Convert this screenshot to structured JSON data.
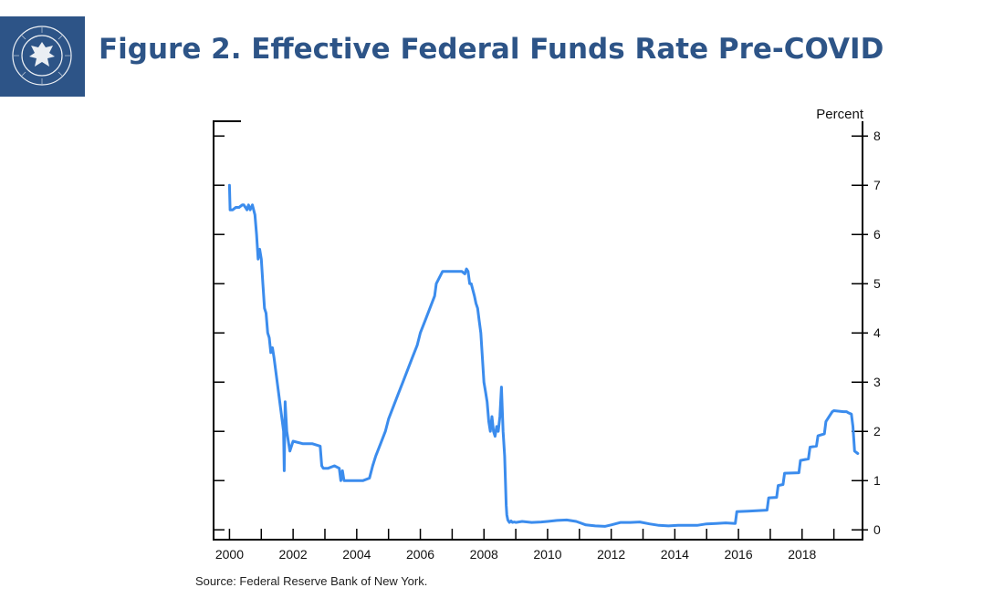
{
  "header": {
    "title": "Figure 2. Effective Federal Funds Rate Pre-COVID",
    "logo_icon": "federal-reserve-seal-icon",
    "logo_color": "#2d5487"
  },
  "source_note": "Source: Federal Reserve Bank of New York.",
  "chart_data": {
    "type": "line",
    "title": "",
    "xlabel": "",
    "ylabel": "Percent",
    "y_axis_side": "right",
    "xlim": [
      1999.5,
      2019.9
    ],
    "ylim": [
      -0.2,
      8.3
    ],
    "x_ticks": [
      2000,
      2002,
      2004,
      2006,
      2008,
      2010,
      2012,
      2014,
      2016,
      2018
    ],
    "y_ticks": [
      0,
      1,
      2,
      3,
      4,
      5,
      6,
      7,
      8
    ],
    "grid": false,
    "line_color": "#3b8ced",
    "series": [
      {
        "name": "",
        "x": [
          2000.0,
          2000.02,
          2000.1,
          2000.2,
          2000.3,
          2000.4,
          2000.45,
          2000.5,
          2000.55,
          2000.6,
          2000.65,
          2000.72,
          2000.8,
          2000.85,
          2000.9,
          2000.95,
          2001.0,
          2001.05,
          2001.1,
          2001.15,
          2001.2,
          2001.25,
          2001.3,
          2001.35,
          2001.4,
          2001.5,
          2001.6,
          2001.7,
          2001.72,
          2001.75,
          2001.8,
          2001.9,
          2002.0,
          2002.3,
          2002.6,
          2002.85,
          2002.9,
          2002.95,
          2003.1,
          2003.3,
          2003.45,
          2003.5,
          2003.55,
          2003.6,
          2003.8,
          2004.0,
          2004.2,
          2004.4,
          2004.5,
          2004.6,
          2004.75,
          2004.9,
          2005.0,
          2005.15,
          2005.3,
          2005.45,
          2005.6,
          2005.75,
          2005.9,
          2006.0,
          2006.15,
          2006.3,
          2006.45,
          2006.5,
          2006.7,
          2006.9,
          2007.1,
          2007.3,
          2007.4,
          2007.45,
          2007.5,
          2007.55,
          2007.6,
          2007.7,
          2007.75,
          2007.8,
          2007.85,
          2007.9,
          2007.95,
          2008.0,
          2008.05,
          2008.1,
          2008.15,
          2008.2,
          2008.25,
          2008.3,
          2008.35,
          2008.4,
          2008.45,
          2008.5,
          2008.55,
          2008.6,
          2008.65,
          2008.7,
          2008.72,
          2008.75,
          2008.8,
          2008.85,
          2008.9,
          2008.95,
          2009.0,
          2009.2,
          2009.5,
          2009.8,
          2010.0,
          2010.3,
          2010.6,
          2010.9,
          2011.2,
          2011.5,
          2011.8,
          2012.0,
          2012.3,
          2012.6,
          2012.9,
          2013.2,
          2013.5,
          2013.8,
          2014.1,
          2014.4,
          2014.7,
          2015.0,
          2015.3,
          2015.6,
          2015.9,
          2015.95,
          2016.3,
          2016.9,
          2016.95,
          2017.2,
          2017.25,
          2017.4,
          2017.45,
          2017.9,
          2017.95,
          2018.2,
          2018.25,
          2018.45,
          2018.5,
          2018.7,
          2018.75,
          2018.95,
          2019.0,
          2019.3,
          2019.4,
          2019.45,
          2019.55,
          2019.6,
          2019.65,
          2019.75
        ],
        "y": [
          7.0,
          6.5,
          6.5,
          6.55,
          6.55,
          6.6,
          6.6,
          6.55,
          6.5,
          6.6,
          6.5,
          6.6,
          6.4,
          6.0,
          5.5,
          5.7,
          5.5,
          5.0,
          4.5,
          4.4,
          4.0,
          3.9,
          3.6,
          3.7,
          3.5,
          3.0,
          2.5,
          2.0,
          1.2,
          2.6,
          2.0,
          1.6,
          1.8,
          1.75,
          1.75,
          1.7,
          1.3,
          1.25,
          1.25,
          1.3,
          1.25,
          1.0,
          1.2,
          1.0,
          1.0,
          1.0,
          1.0,
          1.05,
          1.3,
          1.5,
          1.75,
          2.0,
          2.25,
          2.5,
          2.75,
          3.0,
          3.25,
          3.5,
          3.75,
          4.0,
          4.25,
          4.5,
          4.75,
          5.0,
          5.25,
          5.25,
          5.25,
          5.25,
          5.2,
          5.3,
          5.25,
          5.0,
          5.0,
          4.75,
          4.6,
          4.5,
          4.25,
          4.0,
          3.5,
          3.0,
          2.8,
          2.6,
          2.2,
          2.0,
          2.3,
          2.0,
          1.9,
          2.1,
          2.0,
          2.3,
          2.9,
          2.0,
          1.5,
          0.5,
          0.3,
          0.2,
          0.15,
          0.18,
          0.15,
          0.16,
          0.15,
          0.17,
          0.15,
          0.16,
          0.17,
          0.19,
          0.2,
          0.17,
          0.1,
          0.08,
          0.07,
          0.1,
          0.15,
          0.15,
          0.16,
          0.12,
          0.09,
          0.08,
          0.09,
          0.09,
          0.09,
          0.12,
          0.13,
          0.14,
          0.13,
          0.37,
          0.38,
          0.4,
          0.65,
          0.66,
          0.9,
          0.92,
          1.15,
          1.16,
          1.41,
          1.44,
          1.68,
          1.7,
          1.91,
          1.95,
          2.2,
          2.4,
          2.42,
          2.4,
          2.4,
          2.38,
          2.35,
          2.1,
          1.6,
          1.55
        ]
      }
    ]
  }
}
